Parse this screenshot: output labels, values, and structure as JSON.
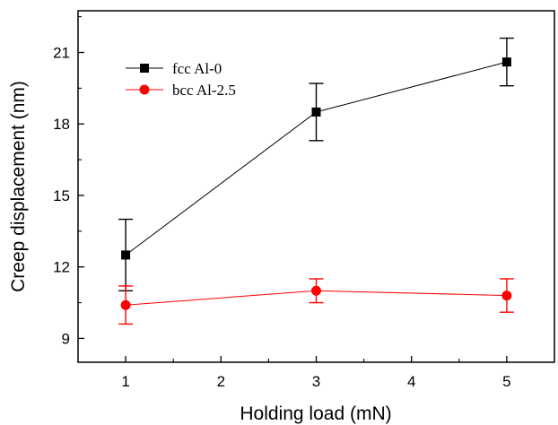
{
  "chart_data": {
    "type": "line",
    "xlabel": "Holding load (mN)",
    "ylabel": "Creep displacement (nm)",
    "xlim": [
      0.5,
      5.5
    ],
    "ylim": [
      8,
      22.75
    ],
    "xticks": [
      1,
      2,
      3,
      4,
      5
    ],
    "yticks": [
      9,
      12,
      15,
      18,
      21
    ],
    "grid": false,
    "legend_position": "top-left",
    "series": [
      {
        "name": "fcc Al-0",
        "color": "#000000",
        "marker": "square",
        "x": [
          1,
          3,
          5
        ],
        "y": [
          12.5,
          18.5,
          20.6
        ],
        "err_low": [
          11.0,
          17.3,
          19.6
        ],
        "err_high": [
          14.0,
          19.7,
          21.6
        ]
      },
      {
        "name": "bcc Al-2.5",
        "color": "#ff0000",
        "marker": "circle",
        "x": [
          1,
          3,
          5
        ],
        "y": [
          10.4,
          11.0,
          10.8
        ],
        "err_low": [
          9.6,
          10.5,
          10.1
        ],
        "err_high": [
          11.2,
          11.5,
          11.5
        ]
      }
    ]
  }
}
